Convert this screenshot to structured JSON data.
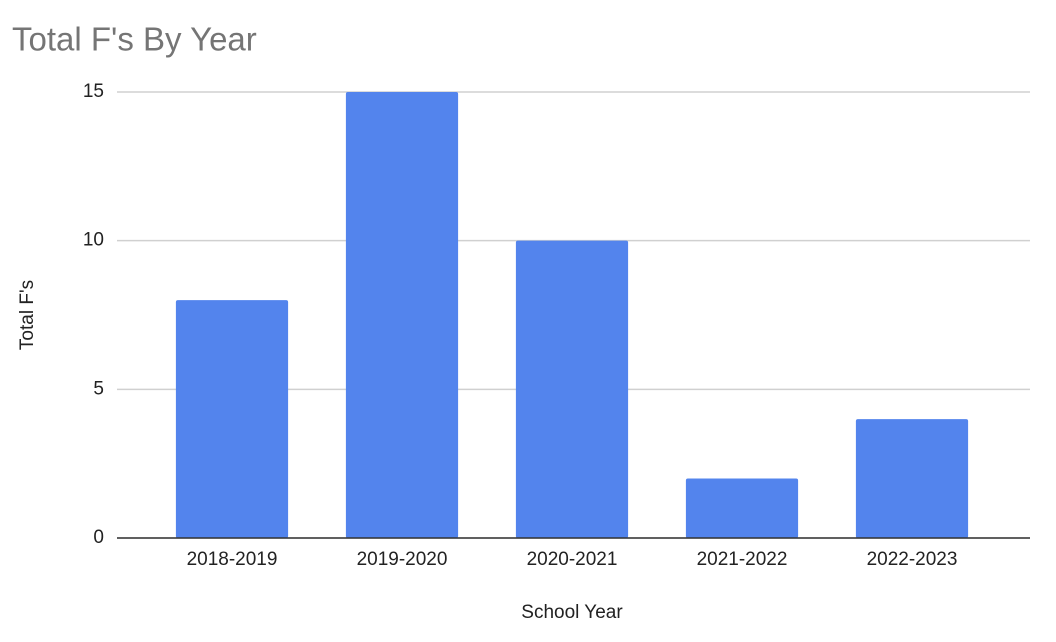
{
  "chart_data": {
    "type": "bar",
    "title": "Total F's By Year",
    "x_label": "School Year",
    "y_label": "Total F's",
    "categories": [
      "2018-2019",
      "2019-2020",
      "2020-2021",
      "2021-2022",
      "2022-2023"
    ],
    "values": [
      8,
      15,
      10,
      2,
      4
    ],
    "color": "#5384ed",
    "ylim": [
      0,
      15
    ],
    "yticks": [
      0,
      5,
      10,
      15
    ],
    "grid": true
  }
}
